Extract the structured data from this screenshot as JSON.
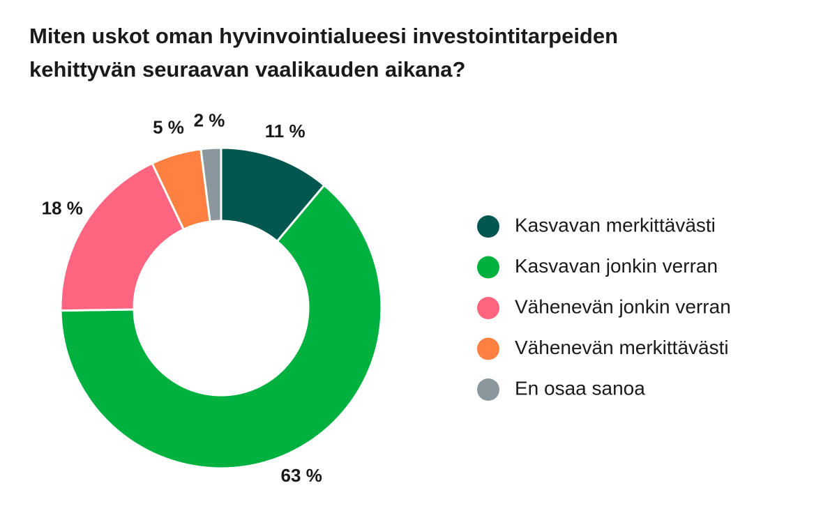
{
  "chart_data": {
    "type": "donut",
    "title": "Miten uskot oman hyvinvointialueesi investointitarpeiden kehittyvän seuraavan vaalikauden aikana?",
    "categories": [
      "Kasvavan merkittävästi",
      "Kasvavan jonkin verran",
      "Vähenevän jonkin verran",
      "Vähenevän merkittävästi",
      "En osaa sanoa"
    ],
    "values": [
      11,
      63,
      18,
      5,
      2
    ],
    "value_labels": [
      "11 %",
      "63 %",
      "18 %",
      "5 %",
      "2 %"
    ],
    "colors": [
      "#00574f",
      "#00b140",
      "#ff6480",
      "#ff8040",
      "#8a979c"
    ],
    "legend": "right"
  }
}
